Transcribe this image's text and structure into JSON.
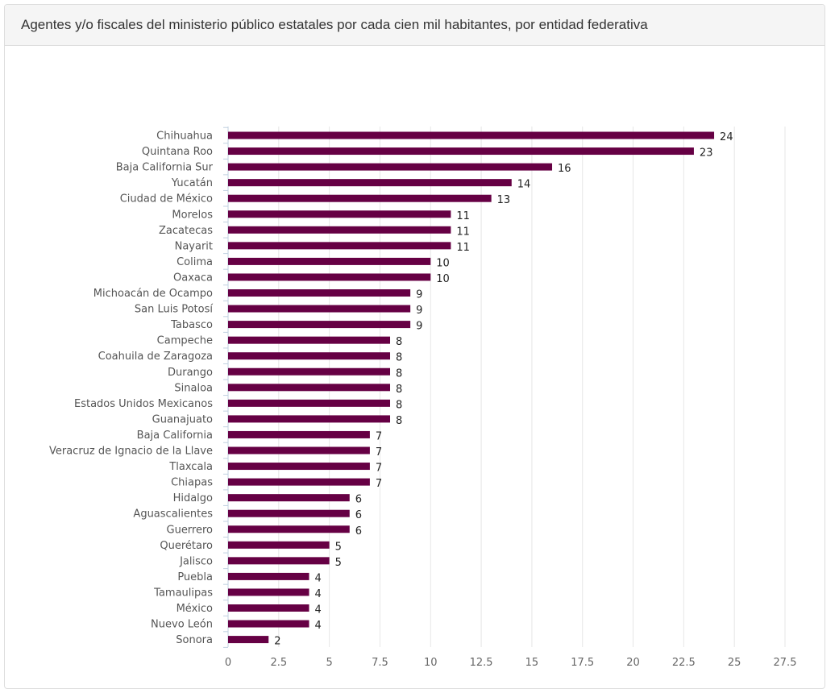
{
  "panel": {
    "title": "Agentes y/o fiscales del ministerio público estatales por cada cien mil habitantes, por entidad federativa"
  },
  "colors": {
    "bar": "#660044",
    "grid": "#e6e6e6",
    "axis": "#c0d0e0"
  },
  "chart_data": {
    "type": "bar",
    "orientation": "horizontal",
    "title": "",
    "xlabel": "",
    "ylabel": "",
    "xlim": [
      0,
      27.5
    ],
    "ticks": [
      0,
      2.5,
      5,
      7.5,
      10,
      12.5,
      15,
      17.5,
      20,
      22.5,
      25,
      27.5
    ],
    "grid": true,
    "legend": "none",
    "categories": [
      "Chihuahua",
      "Quintana Roo",
      "Baja California Sur",
      "Yucatán",
      "Ciudad de México",
      "Morelos",
      "Zacatecas",
      "Nayarit",
      "Colima",
      "Oaxaca",
      "Michoacán de Ocampo",
      "San Luis Potosí",
      "Tabasco",
      "Campeche",
      "Coahuila de Zaragoza",
      "Durango",
      "Sinaloa",
      "Estados Unidos Mexicanos",
      "Guanajuato",
      "Baja California",
      "Veracruz de Ignacio de la Llave",
      "Tlaxcala",
      "Chiapas",
      "Hidalgo",
      "Aguascalientes",
      "Guerrero",
      "Querétaro",
      "Jalisco",
      "Puebla",
      "Tamaulipas",
      "México",
      "Nuevo León",
      "Sonora"
    ],
    "values": [
      24,
      23,
      16,
      14,
      13,
      11,
      11,
      11,
      10,
      10,
      9,
      9,
      9,
      8,
      8,
      8,
      8,
      8,
      8,
      7,
      7,
      7,
      7,
      6,
      6,
      6,
      5,
      5,
      4,
      4,
      4,
      4,
      2
    ]
  }
}
